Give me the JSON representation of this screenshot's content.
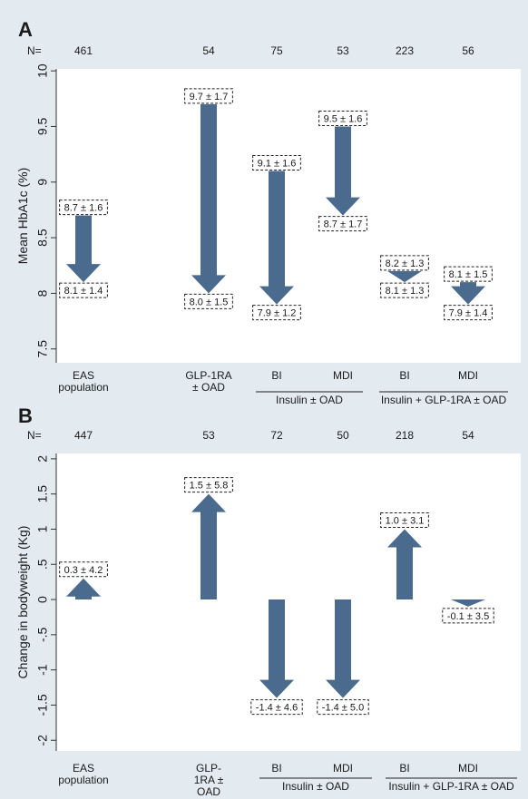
{
  "panels": [
    {
      "id": "A",
      "letter": "A",
      "n_label": "N=",
      "ylabel": "Mean HbA1c  (%)",
      "yticks": [
        "7.5",
        "8",
        "8.5",
        "9",
        "9.5",
        "10"
      ],
      "n_values": [
        "461",
        "54",
        "75",
        "53",
        "223",
        "56"
      ],
      "groups": [
        {
          "lines": [
            "EAS",
            "population"
          ]
        },
        {
          "lines": [
            "GLP-1RA",
            "± OAD"
          ]
        },
        {
          "lines": [
            "BI"
          ]
        },
        {
          "lines": [
            "MDI"
          ]
        },
        {
          "lines": [
            "BI"
          ]
        },
        {
          "lines": [
            "MDI"
          ]
        }
      ],
      "brackets": [
        {
          "label": "Insulin  ± OAD"
        },
        {
          "label": "Insulin  + GLP-1RA ± OAD"
        }
      ],
      "point_labels": [
        {
          "start": "8.7 ± 1.6",
          "end": "8.1 ± 1.4"
        },
        {
          "start": "9.7 ± 1.7",
          "end": "8.0 ± 1.5"
        },
        {
          "start": "9.1 ± 1.6",
          "end": "7.9 ± 1.2"
        },
        {
          "start": "9.5 ± 1.6",
          "end": "8.7 ± 1.7"
        },
        {
          "start": "8.2 ± 1.3",
          "end": "8.1 ± 1.3"
        },
        {
          "start": "8.1 ± 1.5",
          "end": "7.9 ± 1.4"
        }
      ]
    },
    {
      "id": "B",
      "letter": "B",
      "n_label": "N=",
      "ylabel": "Change in bodyweight (Kg)",
      "yticks": [
        "-2",
        "-1.5",
        "-1",
        "-.5",
        "0",
        ".5",
        "1",
        "1.5",
        "2"
      ],
      "n_values": [
        "447",
        "53",
        "72",
        "50",
        "218",
        "54"
      ],
      "groups": [
        {
          "lines": [
            "EAS",
            "population"
          ]
        },
        {
          "lines": [
            "GLP-",
            "1RA ±",
            "OAD"
          ]
        },
        {
          "lines": [
            "BI"
          ]
        },
        {
          "lines": [
            "MDI"
          ]
        },
        {
          "lines": [
            "BI"
          ]
        },
        {
          "lines": [
            "MDI"
          ]
        }
      ],
      "brackets": [
        {
          "label": "Insulin ± OAD"
        },
        {
          "label": "Insulin + GLP-1RA ± OAD"
        }
      ],
      "point_labels": [
        {
          "end": "0.3 ± 4.2"
        },
        {
          "end": "1.5 ± 5.8"
        },
        {
          "end": "-1.4 ± 4.6"
        },
        {
          "end": "-1.4 ± 5.0"
        },
        {
          "end": "1.0 ± 3.1"
        },
        {
          "end": "-0.1 ± 3.5"
        }
      ]
    }
  ],
  "chart_data": [
    {
      "type": "arrow",
      "panel": "A",
      "ylabel": "Mean HbA1c  (%)",
      "ylim": [
        7.4,
        10.05
      ],
      "categories": [
        "EAS population",
        "GLP-1RA ± OAD",
        "BI",
        "MDI",
        "BI",
        "MDI"
      ],
      "n": [
        461,
        54,
        75,
        53,
        223,
        56
      ],
      "start": [
        8.7,
        9.7,
        9.1,
        9.5,
        8.2,
        8.1
      ],
      "end": [
        8.1,
        8.0,
        7.9,
        8.7,
        8.1,
        7.9
      ],
      "start_sd": [
        1.6,
        1.7,
        1.6,
        1.6,
        1.3,
        1.5
      ],
      "end_sd": [
        1.4,
        1.5,
        1.2,
        1.7,
        1.3,
        1.4
      ],
      "color": "#4a6a8e"
    },
    {
      "type": "arrow",
      "panel": "B",
      "ylabel": "Change in bodyweight (Kg)",
      "ylim": [
        -2.1,
        2.05
      ],
      "categories": [
        "EAS population",
        "GLP-1RA ± OAD",
        "BI",
        "MDI",
        "BI",
        "MDI"
      ],
      "n": [
        447,
        53,
        72,
        50,
        218,
        54
      ],
      "values": [
        0.3,
        1.5,
        -1.4,
        -1.4,
        1.0,
        -0.1
      ],
      "sd": [
        4.2,
        5.8,
        4.6,
        5.0,
        3.1,
        3.5
      ],
      "color": "#4a6a8e"
    }
  ]
}
